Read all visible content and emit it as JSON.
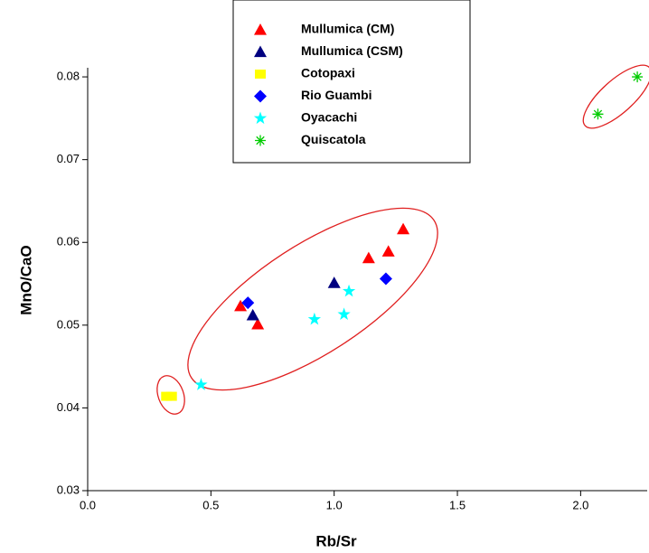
{
  "chart_data": {
    "type": "scatter",
    "x_label": "Rb/Sr",
    "y_label": "MnO/CaO",
    "xlim": [
      0,
      2.27
    ],
    "ylim": [
      0.03,
      0.0811
    ],
    "xticks": [
      {
        "value": 0,
        "label": "0.0"
      },
      0.5,
      {
        "value": 1,
        "label": "1.0"
      },
      1.5,
      {
        "value": 2,
        "label": "2.0"
      }
    ],
    "yticks": [
      0.03,
      0.04,
      0.05,
      0.06,
      0.07,
      0.08
    ],
    "legend": "top",
    "series": [
      {
        "name": "Mullumica (CM)",
        "color": "#ff0000",
        "marker": "triangle",
        "x": [
          0.62,
          0.69,
          1.14,
          1.22,
          1.28
        ],
        "values": [
          0.0523,
          0.0501,
          0.0581,
          0.0589,
          0.0616
        ]
      },
      {
        "name": "Mullumica (CSM)",
        "color": "#000080",
        "marker": "triangle",
        "x": [
          0.67,
          1.0
        ],
        "values": [
          0.0512,
          0.0551
        ]
      },
      {
        "name": "Cotopaxi",
        "color": "#ffff00",
        "marker": "square",
        "x": [
          0.32,
          0.34
        ],
        "values": [
          0.0414,
          0.0414
        ]
      },
      {
        "name": "Rio Guambi",
        "color": "#0000ff",
        "marker": "diamond",
        "x": [
          0.65,
          1.21
        ],
        "values": [
          0.0527,
          0.0556
        ]
      },
      {
        "name": "Oyacachi",
        "color": "#00ffff",
        "marker": "star",
        "x": [
          0.46,
          0.92,
          1.04,
          1.06
        ],
        "values": [
          0.0428,
          0.0507,
          0.0513,
          0.0541
        ]
      },
      {
        "name": "Quiscatola",
        "color": "#00cc00",
        "marker": "asterisk",
        "x": [
          2.07,
          2.23
        ],
        "values": [
          0.0755,
          0.08
        ]
      }
    ]
  }
}
